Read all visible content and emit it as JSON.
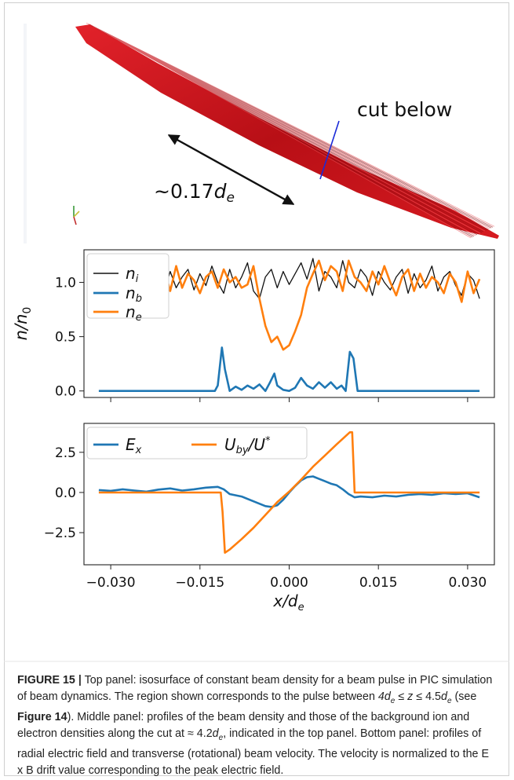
{
  "figure": {
    "top_panel": {
      "annotation_cut": "cut below",
      "annotation_length_prefix": "~0.17",
      "annotation_length_var": "d",
      "annotation_length_sub": "e",
      "beam_color": "#c8141b",
      "cut_line_color": "#1a2ad8"
    },
    "caption": {
      "label": "FIGURE 15",
      "separator": "|",
      "segments": [
        {
          "t": " Top panel: isosurface of constant beam density for a beam pulse in PIC simulation of beam dynamics. The region shown corresponds to the pulse between "
        },
        {
          "t": "4d",
          "i": true
        },
        {
          "t": "e",
          "sub": true
        },
        {
          "t": " ≤ "
        },
        {
          "t": "z",
          "i": true
        },
        {
          "t": " ≤ 4.5"
        },
        {
          "t": "d",
          "i": true
        },
        {
          "t": "e",
          "sub": true
        },
        {
          "t": " (see "
        },
        {
          "t": "Figure 14",
          "b": true
        },
        {
          "t": "). Middle panel: profiles of the beam density and those of the background ion and electron densities along the cut at ≈ 4.2"
        },
        {
          "t": "d",
          "i": true
        },
        {
          "t": "e",
          "sub": true
        },
        {
          "t": ", indicated in the top panel. Bottom panel: profiles of radial electric field and transverse (rotational) beam velocity. The velocity is normalized to the E x B drift value corresponding to the peak electric field."
        }
      ]
    }
  },
  "chart_data": [
    {
      "type": "line",
      "ylabel": "n/n0",
      "xlim": [
        -0.0345,
        0.0345
      ],
      "ylim": [
        -0.06,
        1.3
      ],
      "xticks": [
        -0.03,
        -0.015,
        0.0,
        0.015,
        0.03
      ],
      "yticks": [
        0.0,
        0.5,
        1.0
      ],
      "ytick_labels": [
        "0.0",
        "0.5",
        "1.0"
      ],
      "show_xtick_labels": false,
      "legend_location": "upper-left",
      "series": [
        {
          "name": "n_i",
          "color": "#111111",
          "x": [
            -0.021,
            -0.02,
            -0.019,
            -0.018,
            -0.017,
            -0.016,
            -0.015,
            -0.014,
            -0.013,
            -0.012,
            -0.011,
            -0.01,
            -0.009,
            -0.008,
            -0.007,
            -0.006,
            -0.005,
            -0.004,
            -0.003,
            -0.002,
            -0.001,
            0.0,
            0.001,
            0.002,
            0.003,
            0.004,
            0.005,
            0.006,
            0.007,
            0.008,
            0.009,
            0.01,
            0.011,
            0.012,
            0.013,
            0.014,
            0.015,
            0.016,
            0.017,
            0.018,
            0.019,
            0.02,
            0.021,
            0.022,
            0.023,
            0.024,
            0.025,
            0.026,
            0.027,
            0.028,
            0.029,
            0.03,
            0.031,
            0.032
          ],
          "y": [
            0.92,
            1.1,
            0.95,
            1.05,
            1.12,
            0.93,
            1.08,
            0.97,
            1.15,
            1.0,
            0.9,
            1.12,
            0.95,
            1.05,
            1.18,
            0.92,
            0.85,
            1.05,
            1.12,
            0.95,
            1.1,
            0.98,
            1.08,
            1.18,
            1.03,
            1.22,
            0.92,
            1.1,
            1.05,
            0.95,
            1.2,
            1.0,
            0.95,
            1.12,
            1.05,
            0.88,
            1.1,
            1.0,
            0.93,
            1.05,
            1.12,
            0.9,
            1.08,
            0.95,
            1.02,
            1.15,
            0.92,
            1.05,
            1.1,
            0.97,
            0.88,
            1.08,
            1.02,
            0.85
          ]
        },
        {
          "name": "n_b",
          "color": "#1f77b4",
          "x": [
            -0.032,
            -0.0125,
            -0.012,
            -0.0113,
            -0.0108,
            -0.01,
            -0.009,
            -0.008,
            -0.007,
            -0.006,
            -0.005,
            -0.004,
            -0.0032,
            -0.0025,
            -0.002,
            -0.001,
            0.0,
            0.001,
            0.002,
            0.003,
            0.004,
            0.005,
            0.006,
            0.007,
            0.008,
            0.0088,
            0.0095,
            0.0102,
            0.0108,
            0.0115,
            0.032
          ],
          "y": [
            0.0,
            0.0,
            0.05,
            0.4,
            0.2,
            0.0,
            0.04,
            0.01,
            0.05,
            0.02,
            0.06,
            0.0,
            0.08,
            0.16,
            0.05,
            0.01,
            0.0,
            0.03,
            0.12,
            0.05,
            0.02,
            0.08,
            0.03,
            0.08,
            0.02,
            0.05,
            0.0,
            0.36,
            0.3,
            0.0,
            0.0
          ]
        },
        {
          "name": "n_e",
          "color": "#ff7f0e",
          "x": [
            -0.032,
            -0.031,
            -0.03,
            -0.029,
            -0.028,
            -0.027,
            -0.026,
            -0.025,
            -0.024,
            -0.023,
            -0.022,
            -0.021,
            -0.02,
            -0.019,
            -0.018,
            -0.017,
            -0.016,
            -0.015,
            -0.014,
            -0.013,
            -0.012,
            -0.011,
            -0.01,
            -0.009,
            -0.008,
            -0.007,
            -0.006,
            -0.005,
            -0.004,
            -0.003,
            -0.002,
            -0.001,
            0.0,
            0.001,
            0.002,
            0.003,
            0.004,
            0.005,
            0.006,
            0.007,
            0.008,
            0.009,
            0.01,
            0.011,
            0.012,
            0.013,
            0.014,
            0.015,
            0.016,
            0.017,
            0.018,
            0.019,
            0.02,
            0.021,
            0.022,
            0.023,
            0.024,
            0.025,
            0.026,
            0.027,
            0.028,
            0.029,
            0.03,
            0.031,
            0.032
          ],
          "y": [
            0.9,
            1.0,
            0.92,
            1.05,
            0.95,
            1.03,
            0.9,
            1.1,
            0.98,
            0.9,
            1.05,
            1.12,
            0.92,
            1.15,
            0.95,
            1.08,
            1.02,
            0.9,
            1.05,
            1.1,
            0.95,
            1.12,
            1.0,
            1.05,
            0.95,
            0.98,
            1.15,
            0.85,
            0.6,
            0.45,
            0.5,
            0.38,
            0.42,
            0.55,
            0.7,
            0.95,
            1.08,
            1.2,
            1.02,
            1.15,
            1.1,
            0.92,
            1.2,
            1.05,
            1.0,
            0.92,
            1.1,
            0.98,
            1.15,
            1.0,
            0.88,
            1.05,
            1.12,
            0.92,
            1.08,
            0.95,
            1.05,
            1.0,
            0.9,
            1.08,
            1.0,
            0.82,
            1.1,
            0.9,
            1.03
          ]
        }
      ]
    },
    {
      "type": "line",
      "xlabel": "x/d_e",
      "xlim": [
        -0.0345,
        0.0345
      ],
      "ylim": [
        -4.5,
        4.3
      ],
      "xticks": [
        -0.03,
        -0.015,
        0.0,
        0.015,
        0.03
      ],
      "xtick_labels": [
        "−0.030",
        "−0.015",
        "0.000",
        "0.015",
        "0.030"
      ],
      "yticks": [
        -2.5,
        0.0,
        2.5
      ],
      "ytick_labels": [
        "−2.5",
        "0.0",
        "2.5"
      ],
      "legend_location": "upper-left",
      "series": [
        {
          "name": "E_x",
          "color": "#1f77b4",
          "x": [
            -0.032,
            -0.03,
            -0.028,
            -0.026,
            -0.024,
            -0.022,
            -0.02,
            -0.018,
            -0.016,
            -0.014,
            -0.012,
            -0.011,
            -0.01,
            -0.008,
            -0.006,
            -0.004,
            -0.003,
            -0.002,
            -0.001,
            0.0,
            0.001,
            0.002,
            0.003,
            0.004,
            0.005,
            0.006,
            0.007,
            0.008,
            0.009,
            0.01,
            0.011,
            0.012,
            0.014,
            0.016,
            0.018,
            0.02,
            0.022,
            0.024,
            0.026,
            0.028,
            0.03,
            0.032
          ],
          "y": [
            0.15,
            0.1,
            0.2,
            0.12,
            0.05,
            0.18,
            0.25,
            0.12,
            0.2,
            0.3,
            0.35,
            0.2,
            -0.1,
            -0.25,
            -0.55,
            -0.85,
            -0.9,
            -0.8,
            -0.45,
            0.0,
            0.4,
            0.75,
            0.95,
            1.0,
            0.85,
            0.7,
            0.55,
            0.45,
            0.2,
            -0.1,
            -0.3,
            -0.25,
            -0.3,
            -0.2,
            -0.25,
            -0.15,
            -0.1,
            -0.15,
            -0.05,
            -0.1,
            -0.05,
            -0.3
          ]
        },
        {
          "name": "U_by/U*",
          "color": "#ff7f0e",
          "x": [
            -0.032,
            -0.0115,
            -0.0112,
            -0.0108,
            -0.01,
            -0.008,
            -0.006,
            -0.004,
            -0.002,
            0.0,
            0.002,
            0.004,
            0.006,
            0.008,
            0.0102,
            0.0106,
            0.011,
            0.032
          ],
          "y": [
            0.0,
            0.0,
            -1.2,
            -3.75,
            -3.55,
            -2.9,
            -2.2,
            -1.4,
            -0.6,
            0.05,
            0.8,
            1.6,
            2.3,
            3.0,
            3.75,
            3.75,
            0.0,
            0.0
          ]
        }
      ]
    }
  ]
}
